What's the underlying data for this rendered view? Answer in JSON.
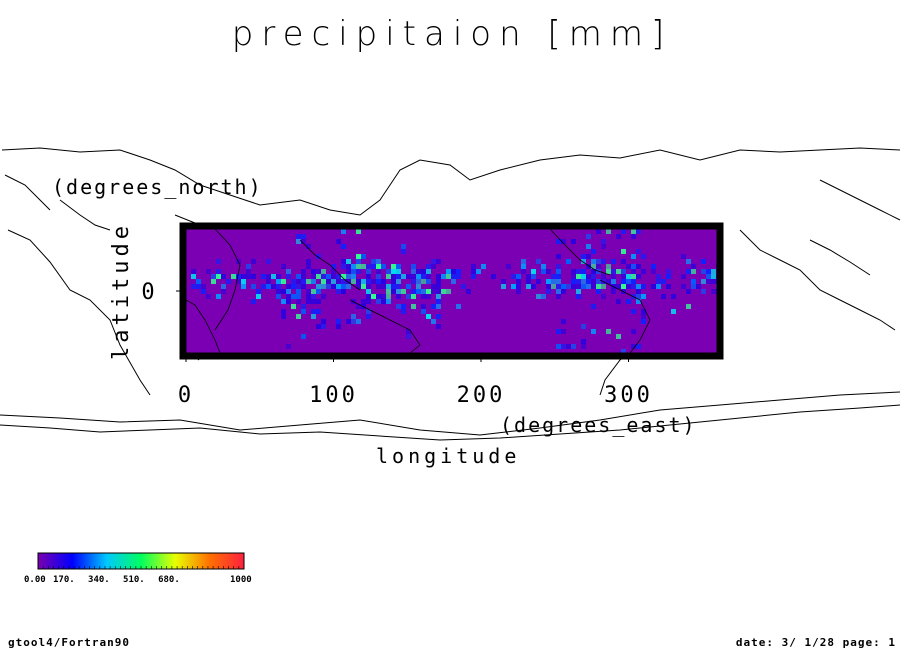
{
  "chart_data": {
    "type": "heatmap",
    "title": "precipitaion [mm]",
    "xlabel": "longitude",
    "xunits": "(degrees_east)",
    "ylabel": "latitude",
    "yunits": "(degrees_north)",
    "xlim": [
      0,
      360
    ],
    "ylim": [
      -30,
      30
    ],
    "xticks": [
      "0",
      "100",
      "200",
      "300"
    ],
    "xtick_values": [
      0,
      100,
      200,
      300
    ],
    "yticks": [
      "0"
    ],
    "ytick_values": [
      0
    ],
    "colorbar": {
      "labels": [
        "0.00",
        "170.",
        "340.",
        "510.",
        "680.",
        "1000"
      ],
      "values": [
        0,
        170,
        340,
        510,
        680,
        1000
      ],
      "colors": [
        "#7a00b0",
        "#0000ff",
        "#00c8ff",
        "#00ff60",
        "#e8ff00",
        "#ff7000",
        "#ff2040"
      ]
    },
    "background_color": "#7b00b4"
  },
  "footer": {
    "left": "gtool4/Fortran90",
    "right": "date: 3/ 1/28 page: 1"
  }
}
